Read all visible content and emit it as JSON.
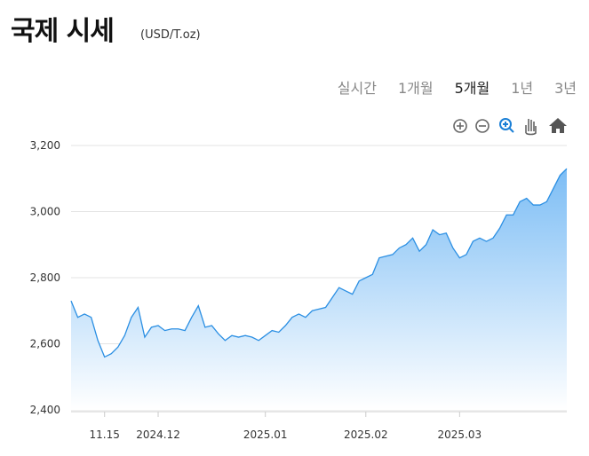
{
  "header": {
    "title": "국제 시세",
    "unit": "(USD/T.oz)"
  },
  "tabs": {
    "items": [
      "실시간",
      "1개월",
      "5개월",
      "1년",
      "3년"
    ],
    "selected": 2
  },
  "chart_data": {
    "type": "area",
    "color": "#2b8fe3",
    "grid": true,
    "categories": [
      null,
      null,
      null,
      null,
      null,
      "11.15",
      null,
      null,
      null,
      null,
      null,
      null,
      null,
      "2024.12",
      null,
      null,
      null,
      null,
      null,
      null,
      null,
      null,
      null,
      null,
      null,
      null,
      null,
      null,
      null,
      "2025.01",
      null,
      null,
      null,
      null,
      null,
      null,
      null,
      null,
      null,
      null,
      null,
      null,
      null,
      null,
      "2025.02",
      null,
      null,
      null,
      null,
      null,
      null,
      null,
      null,
      null,
      null,
      null,
      null,
      null,
      "2025.03",
      null,
      null,
      null,
      null,
      null,
      null,
      null,
      null,
      null,
      null,
      null,
      null,
      null,
      null,
      null,
      null
    ],
    "values": [
      2730,
      2680,
      2690,
      2680,
      2610,
      2560,
      2570,
      2590,
      2625,
      2680,
      2710,
      2620,
      2650,
      2655,
      2640,
      2645,
      2645,
      2640,
      2680,
      2715,
      2650,
      2655,
      2630,
      2610,
      2625,
      2620,
      2625,
      2620,
      2610,
      2625,
      2640,
      2635,
      2655,
      2680,
      2690,
      2680,
      2700,
      2705,
      2710,
      2740,
      2770,
      2760,
      2750,
      2790,
      2800,
      2810,
      2860,
      2865,
      2870,
      2890,
      2900,
      2920,
      2880,
      2900,
      2945,
      2930,
      2935,
      2890,
      2860,
      2870,
      2910,
      2920,
      2910,
      2920,
      2950,
      2990,
      2990,
      3030,
      3040,
      3020,
      3020,
      3030,
      3070,
      3110,
      3130
    ],
    "ylim": [
      2400,
      3200
    ],
    "yticks": [
      {
        "value": 2400,
        "label": "2,400"
      },
      {
        "value": 2600,
        "label": "2,600"
      },
      {
        "value": 2800,
        "label": "2,800"
      },
      {
        "value": 3000,
        "label": "3,000"
      },
      {
        "value": 3200,
        "label": "3,200"
      }
    ]
  }
}
